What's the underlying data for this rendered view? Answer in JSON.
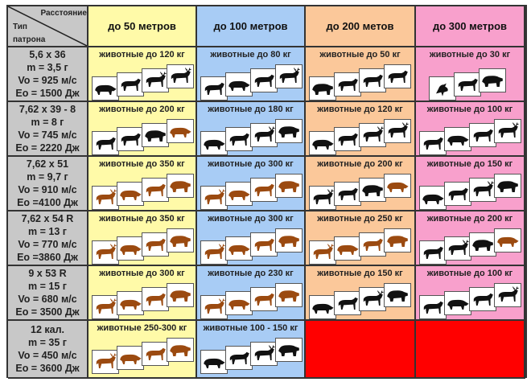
{
  "header": {
    "corner_top": "Расстояние",
    "corner_bottom_1": "Тип",
    "corner_bottom_2": "патрона",
    "columns": [
      {
        "label": "до 50 метров",
        "color": "#fffaa8"
      },
      {
        "label": "до 100 метров",
        "color": "#a8ccf5"
      },
      {
        "label": "до 200 метов",
        "color": "#fbc89a"
      },
      {
        "label": "до 300 метров",
        "color": "#f8a0cc"
      }
    ]
  },
  "colors": {
    "black": "#111111",
    "brown": "#9b4a10",
    "empty": "#ff0000",
    "rowhead": "#c8c8c8"
  },
  "rows": [
    {
      "cartridge": [
        "5,6 x 36",
        "m = 3,5 г",
        "Vo = 925 м/с",
        "Eo = 1500 Дж"
      ],
      "cells": [
        {
          "label": "животные до 120 кг",
          "animals": [
            [
              "boar",
              "black"
            ],
            [
              "deer",
              "black"
            ],
            [
              "reindeer",
              "black"
            ],
            [
              "moose",
              "black"
            ]
          ]
        },
        {
          "label": "животные до 80 кг",
          "animals": [
            [
              "wolf",
              "black"
            ],
            [
              "boar",
              "black"
            ],
            [
              "deer",
              "black"
            ],
            [
              "reindeer",
              "black"
            ]
          ]
        },
        {
          "label": "животные до 50 кг",
          "animals": [
            [
              "beaver",
              "black"
            ],
            [
              "fox",
              "black"
            ],
            [
              "wolf",
              "black"
            ],
            [
              "deer",
              "black"
            ]
          ]
        },
        {
          "label": "животные до 30 кг",
          "animals": [
            [
              "bird",
              "black"
            ],
            [
              "fox",
              "black"
            ],
            [
              "badger",
              "black"
            ]
          ]
        }
      ]
    },
    {
      "cartridge": [
        "7,62 x 39 - 8",
        "m = 8 г",
        "Vo =  745 м/с",
        "Eo = 2220 Дж"
      ],
      "cells": [
        {
          "label": "животные до 200 кг",
          "animals": [
            [
              "wolf",
              "black"
            ],
            [
              "deer",
              "black"
            ],
            [
              "bear",
              "black"
            ],
            [
              "boar",
              "brown"
            ]
          ]
        },
        {
          "label": "животные до 180 кг",
          "animals": [
            [
              "boar",
              "black"
            ],
            [
              "deer",
              "black"
            ],
            [
              "moose",
              "black"
            ],
            [
              "bear",
              "black"
            ]
          ]
        },
        {
          "label": "животные до 120 кг",
          "animals": [
            [
              "boar",
              "black"
            ],
            [
              "deer",
              "black"
            ],
            [
              "reindeer",
              "black"
            ],
            [
              "moose",
              "black"
            ]
          ]
        },
        {
          "label": "животные до 100 кг",
          "animals": [
            [
              "wolf",
              "black"
            ],
            [
              "boar",
              "black"
            ],
            [
              "deer",
              "black"
            ],
            [
              "reindeer",
              "black"
            ]
          ]
        }
      ]
    },
    {
      "cartridge": [
        "7,62 x 51",
        "m = 9,7 г",
        "Vo = 910 м/с",
        "Eo =4100 Дж"
      ],
      "cells": [
        {
          "label": "животные до 350 кг",
          "animals": [
            [
              "moose",
              "brown"
            ],
            [
              "bison",
              "brown"
            ],
            [
              "deer",
              "brown"
            ],
            [
              "bear",
              "brown"
            ]
          ]
        },
        {
          "label": "животные до 300 кг",
          "animals": [
            [
              "moose",
              "brown"
            ],
            [
              "bison",
              "brown"
            ],
            [
              "deer",
              "brown"
            ],
            [
              "bear",
              "brown"
            ]
          ]
        },
        {
          "label": "животные до 200 кг",
          "animals": [
            [
              "moose",
              "black"
            ],
            [
              "deer",
              "black"
            ],
            [
              "bear",
              "black"
            ],
            [
              "boar",
              "brown"
            ]
          ]
        },
        {
          "label": "животные до 150 кг",
          "animals": [
            [
              "boar",
              "black"
            ],
            [
              "deer",
              "black"
            ],
            [
              "moose",
              "black"
            ],
            [
              "bear",
              "black"
            ]
          ]
        }
      ]
    },
    {
      "cartridge": [
        "7,62 x 54 R",
        "m = 13 г",
        "Vo = 770 м/с",
        "Eo =3860 Дж"
      ],
      "cells": [
        {
          "label": "животные до 350 кг",
          "animals": [
            [
              "moose",
              "brown"
            ],
            [
              "bison",
              "brown"
            ],
            [
              "deer",
              "brown"
            ],
            [
              "bear",
              "brown"
            ]
          ]
        },
        {
          "label": "животные до 300 кг",
          "animals": [
            [
              "moose",
              "brown"
            ],
            [
              "bison",
              "brown"
            ],
            [
              "deer",
              "brown"
            ],
            [
              "bear",
              "brown"
            ]
          ]
        },
        {
          "label": "животные до 250 кг",
          "animals": [
            [
              "moose",
              "brown"
            ],
            [
              "boar",
              "brown"
            ],
            [
              "deer",
              "brown"
            ],
            [
              "bear",
              "brown"
            ]
          ]
        },
        {
          "label": "животные до 200 кг",
          "animals": [
            [
              "deer",
              "black"
            ],
            [
              "moose",
              "black"
            ],
            [
              "bear",
              "black"
            ],
            [
              "boar",
              "brown"
            ]
          ]
        }
      ]
    },
    {
      "cartridge": [
        "9 x 53 R",
        "m = 15 г",
        "Vo = 680 м/с",
        "Eo = 3500 Дж"
      ],
      "cells": [
        {
          "label": "животные до 300 кг",
          "animals": [
            [
              "moose",
              "brown"
            ],
            [
              "bison",
              "brown"
            ],
            [
              "deer",
              "brown"
            ],
            [
              "bear",
              "brown"
            ]
          ]
        },
        {
          "label": "животные до 230 кг",
          "animals": [
            [
              "moose",
              "brown"
            ],
            [
              "bison",
              "brown"
            ],
            [
              "deer",
              "brown"
            ],
            [
              "bear",
              "brown"
            ]
          ]
        },
        {
          "label": "животные до 150 кг",
          "animals": [
            [
              "boar",
              "black"
            ],
            [
              "deer",
              "black"
            ],
            [
              "moose",
              "black"
            ],
            [
              "bear",
              "black"
            ]
          ]
        },
        {
          "label": "животные до 100 кг",
          "animals": [
            [
              "wolf",
              "black"
            ],
            [
              "boar",
              "black"
            ],
            [
              "deer",
              "black"
            ],
            [
              "reindeer",
              "black"
            ]
          ]
        }
      ]
    },
    {
      "cartridge": [
        "12 кал.",
        "m = 35 г",
        "Vo = 450 м/с",
        "Eo = 3600 Дж"
      ],
      "cells": [
        {
          "label": "животные 250-300 кг",
          "animals": [
            [
              "moose",
              "brown"
            ],
            [
              "bison",
              "brown"
            ],
            [
              "deer",
              "brown"
            ],
            [
              "bear",
              "brown"
            ]
          ]
        },
        {
          "label": "животные 100 - 150 кг",
          "animals": [
            [
              "boar",
              "black"
            ],
            [
              "deer",
              "black"
            ],
            [
              "moose",
              "black"
            ],
            [
              "bear",
              "black"
            ]
          ]
        },
        {
          "label": "",
          "animals": [],
          "empty": true
        },
        {
          "label": "",
          "animals": [],
          "empty": true
        }
      ]
    }
  ]
}
